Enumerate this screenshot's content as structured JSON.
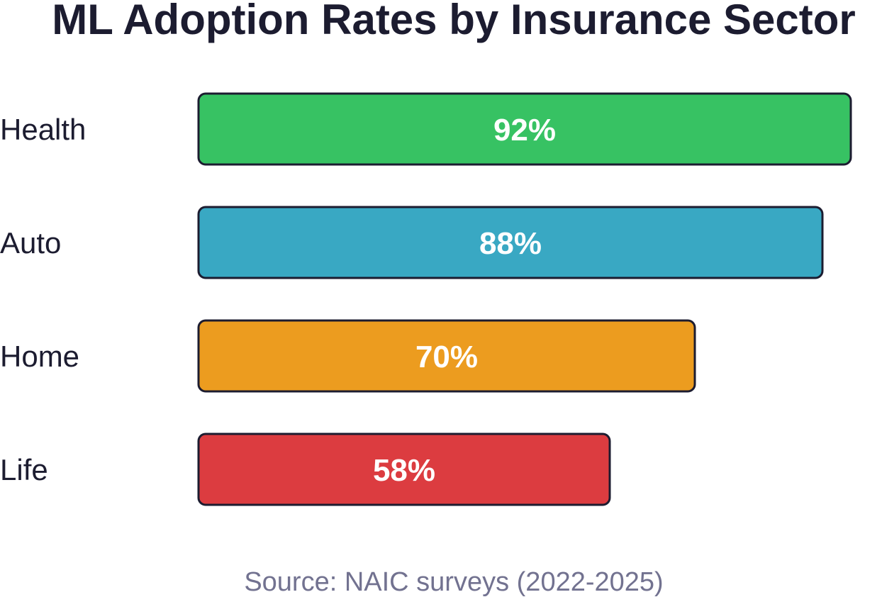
{
  "chart_data": {
    "type": "bar",
    "orientation": "horizontal",
    "title": "ML Adoption Rates by Insurance Sector",
    "categories": [
      "Health",
      "Auto",
      "Home",
      "Life"
    ],
    "values": [
      92,
      88,
      70,
      58
    ],
    "value_labels": [
      "92%",
      "88%",
      "70%",
      "58%"
    ],
    "colors": [
      "#37c263",
      "#39a8c3",
      "#ec9c1f",
      "#dc3c40"
    ],
    "xlim": [
      0,
      100
    ],
    "grid": false,
    "legend": "none",
    "source": "Source: NAIC surveys (2022-2025)"
  }
}
